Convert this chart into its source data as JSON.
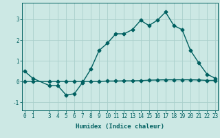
{
  "xlabel": "Humidex (Indice chaleur)",
  "background_color": "#cce8e4",
  "line_color": "#006060",
  "grid_color": "#aacfcb",
  "x_values": [
    0,
    1,
    3,
    4,
    5,
    6,
    7,
    8,
    9,
    10,
    11,
    12,
    13,
    14,
    15,
    16,
    17,
    18,
    19,
    20,
    21,
    22,
    23
  ],
  "y_values": [
    0.5,
    0.15,
    -0.2,
    -0.2,
    -0.65,
    -0.6,
    -0.05,
    0.6,
    1.5,
    1.85,
    2.3,
    2.3,
    2.5,
    2.95,
    2.7,
    2.95,
    3.35,
    2.7,
    2.5,
    1.5,
    0.9,
    0.35,
    0.15
  ],
  "y2_x_values": [
    0,
    1,
    3,
    4,
    5,
    6,
    7,
    8,
    9,
    10,
    11,
    12,
    13,
    14,
    15,
    16,
    17,
    18,
    19,
    20,
    21,
    22,
    23
  ],
  "y2_values": [
    0.0,
    0.0,
    0.0,
    0.0,
    0.0,
    0.0,
    0.0,
    0.0,
    0.0,
    0.02,
    0.02,
    0.03,
    0.03,
    0.04,
    0.06,
    0.07,
    0.08,
    0.08,
    0.08,
    0.08,
    0.07,
    0.05,
    0.05
  ],
  "ylim": [
    -1.4,
    3.8
  ],
  "xlim": [
    -0.3,
    23.3
  ],
  "yticks": [
    -1,
    0,
    1,
    2,
    3
  ],
  "ytick_labels": [
    "-1",
    "0",
    "1",
    "2",
    "3"
  ],
  "xticks": [
    0,
    1,
    3,
    4,
    5,
    6,
    7,
    8,
    9,
    10,
    11,
    12,
    13,
    14,
    15,
    16,
    17,
    18,
    19,
    20,
    21,
    22,
    23
  ],
  "xtick_labels": [
    "0",
    "1",
    "3",
    "4",
    "5",
    "6",
    "7",
    "8",
    "9",
    "10",
    "11",
    "12",
    "13",
    "14",
    "15",
    "16",
    "17",
    "18",
    "19",
    "20",
    "21",
    "22",
    "23"
  ],
  "marker": "D",
  "markersize": 2.5,
  "linewidth": 1.0,
  "label_fontsize": 6.5,
  "tick_fontsize": 5.5
}
